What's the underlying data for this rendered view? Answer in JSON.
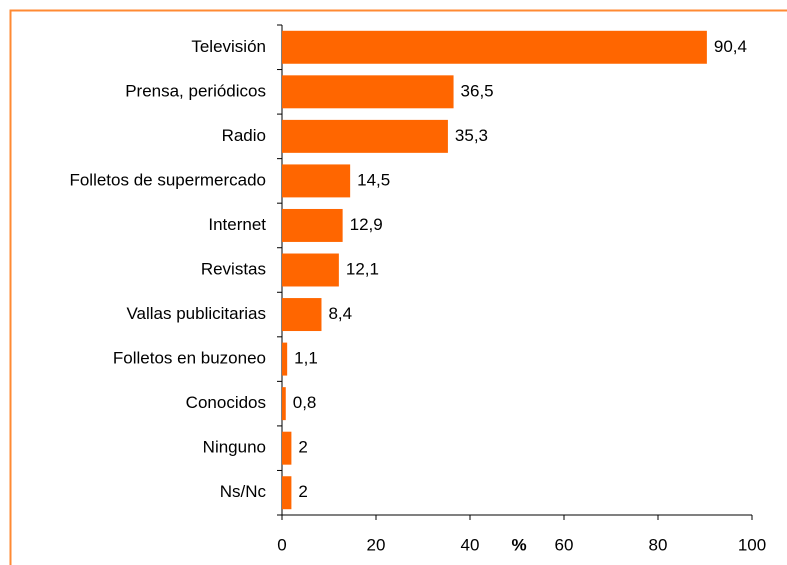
{
  "chart_data": {
    "type": "bar",
    "orientation": "horizontal",
    "categories": [
      "Televisión",
      "Prensa, periódicos",
      "Radio",
      "Folletos de supermercado",
      "Internet",
      "Revistas",
      "Vallas publicitarias",
      "Folletos en buzoneo",
      "Conocidos",
      "Ninguno",
      "Ns/Nc"
    ],
    "values": [
      90.4,
      36.5,
      35.3,
      14.5,
      12.9,
      12.1,
      8.4,
      1.1,
      0.8,
      2,
      2
    ],
    "value_labels": [
      "90,4",
      "36,5",
      "35,3",
      "14,5",
      "12,9",
      "12,1",
      "8,4",
      "1,1",
      "0,8",
      "2",
      "2"
    ],
    "color": "#ff6600",
    "x_label": "%",
    "xlim": [
      0,
      100
    ],
    "xticks": [
      0,
      20,
      40,
      60,
      80,
      100
    ],
    "grid": false
  }
}
